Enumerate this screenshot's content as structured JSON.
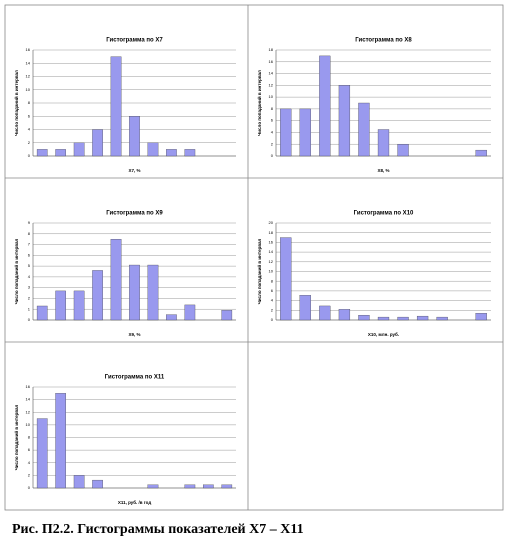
{
  "chart_data": [
    {
      "type": "bar",
      "title": "Гистограмма по X7",
      "x_label": "X7, %",
      "y_label": "Число попаданий в интервал",
      "categories": [
        null,
        null,
        null,
        null,
        null,
        null,
        null,
        null,
        null,
        null,
        null
      ],
      "values": [
        1,
        1,
        2,
        4,
        15,
        6,
        2,
        1,
        1,
        0,
        0
      ],
      "color": "#9999ee",
      "ylim": [
        0,
        16
      ],
      "yticks": [
        0,
        2,
        4,
        6,
        8,
        10,
        12,
        14,
        16
      ],
      "grid": true
    },
    {
      "type": "bar",
      "title": "Гистограмма по X8",
      "x_label": "X8, %",
      "y_label": "Число попаданий в интервал",
      "categories": [
        null,
        null,
        null,
        null,
        null,
        null,
        null,
        null,
        null,
        null,
        null
      ],
      "values": [
        8,
        8,
        17,
        12,
        9,
        4.5,
        2,
        0,
        0,
        0,
        1
      ],
      "color": "#9999ee",
      "ylim": [
        0,
        18
      ],
      "yticks": [
        0,
        2,
        4,
        6,
        8,
        10,
        12,
        14,
        16,
        18
      ],
      "grid": true
    },
    {
      "type": "bar",
      "title": "Гистограмма по X9",
      "x_label": "X9, %",
      "y_label": "Число попаданий в интервал",
      "categories": [
        null,
        null,
        null,
        null,
        null,
        null,
        null,
        null,
        null,
        null,
        null
      ],
      "values": [
        1.3,
        2.7,
        2.7,
        4.6,
        7.5,
        5.1,
        5.1,
        0.5,
        1.4,
        0,
        0.9
      ],
      "color": "#9999ee",
      "ylim": [
        0,
        9
      ],
      "yticks": [
        0,
        1,
        2,
        3,
        4,
        5,
        6,
        7,
        8,
        9
      ],
      "grid": true
    },
    {
      "type": "bar",
      "title": "Гистограмма по X10",
      "x_label": "X10, млн. руб.",
      "y_label": "Число попаданий в интервал",
      "categories": [
        null,
        null,
        null,
        null,
        null,
        null,
        null,
        null,
        null,
        null,
        null
      ],
      "values": [
        17,
        5.1,
        2.9,
        2.2,
        1,
        0.6,
        0.6,
        0.8,
        0.6,
        0,
        1.4
      ],
      "color": "#9999ee",
      "ylim": [
        0,
        20
      ],
      "yticks": [
        0,
        2,
        4,
        6,
        8,
        10,
        12,
        14,
        16,
        18,
        20
      ],
      "grid": true
    },
    {
      "type": "bar",
      "title": "Гистограмма по X11",
      "x_label": "X11, руб. /в год",
      "y_label": "Число попаданий в интервал",
      "categories": [
        null,
        null,
        null,
        null,
        null,
        null,
        null,
        null,
        null,
        null,
        null
      ],
      "values": [
        11,
        15,
        2,
        1.25,
        0,
        0,
        0.5,
        0,
        0.5,
        0.5,
        0.5
      ],
      "color": "#9999ee",
      "ylim": [
        0,
        16
      ],
      "yticks": [
        0,
        2,
        4,
        6,
        8,
        10,
        12,
        14,
        16
      ],
      "grid": true
    }
  ],
  "caption": "Рис. П2.2. Гистограммы показателей X7 – X11"
}
